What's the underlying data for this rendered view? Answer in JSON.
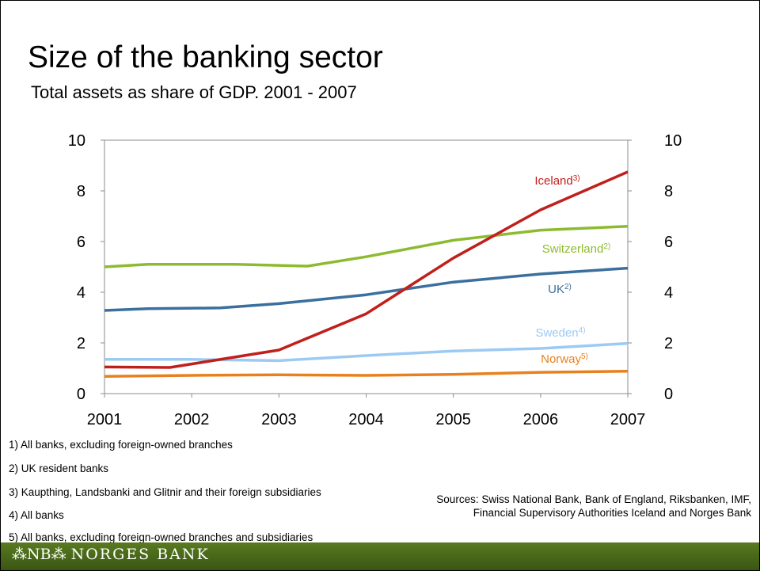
{
  "title": "Size of the banking sector",
  "subtitle": "Total assets as share of GDP. 2001 - 2007",
  "colors": {
    "iceland": "#c0201c",
    "switzerland": "#8dbb30",
    "uk": "#3a6f9e",
    "sweden": "#9ccaf3",
    "norway": "#e8801e",
    "footer": "#4a6a1a"
  },
  "chart_data": {
    "type": "line",
    "x_tick_labels": [
      "2001",
      "2002",
      "2003",
      "2004",
      "2005",
      "2006",
      "2007"
    ],
    "y_ticks": [
      "0",
      "2",
      "4",
      "6",
      "8",
      "10"
    ],
    "y2_ticks": [
      "0",
      "2",
      "4",
      "6",
      "8",
      "10"
    ],
    "ylim": [
      0,
      10
    ],
    "xlim": [
      2001,
      2007
    ],
    "grid": false,
    "series": [
      {
        "key": "iceland",
        "name": "Iceland",
        "sup": "3)",
        "color": "#c0201c",
        "points": [
          [
            2001,
            1.05
          ],
          [
            2001.75,
            1.03
          ],
          [
            2003,
            1.72
          ],
          [
            2004,
            3.15
          ],
          [
            2005,
            5.35
          ],
          [
            2006,
            7.25
          ],
          [
            2007,
            8.75
          ]
        ]
      },
      {
        "key": "switzerland",
        "name": "Switzerland",
        "sup": "2)",
        "color": "#8dbb30",
        "points": [
          [
            2001,
            5.0
          ],
          [
            2001.5,
            5.1
          ],
          [
            2002.5,
            5.1
          ],
          [
            2003.33,
            5.03
          ],
          [
            2004,
            5.4
          ],
          [
            2005,
            6.05
          ],
          [
            2006,
            6.45
          ],
          [
            2007,
            6.6
          ]
        ]
      },
      {
        "key": "uk",
        "name": "UK",
        "sup": "2)",
        "color": "#3a6f9e",
        "points": [
          [
            2001,
            3.28
          ],
          [
            2001.5,
            3.35
          ],
          [
            2002.33,
            3.38
          ],
          [
            2003,
            3.55
          ],
          [
            2004,
            3.9
          ],
          [
            2005,
            4.4
          ],
          [
            2006,
            4.72
          ],
          [
            2007,
            4.95
          ]
        ]
      },
      {
        "key": "sweden",
        "name": "Sweden",
        "sup": "4)",
        "color": "#9ccaf3",
        "points": [
          [
            2001,
            1.35
          ],
          [
            2002,
            1.35
          ],
          [
            2003,
            1.3
          ],
          [
            2004,
            1.5
          ],
          [
            2005,
            1.68
          ],
          [
            2006,
            1.78
          ],
          [
            2007,
            1.98
          ]
        ]
      },
      {
        "key": "norway",
        "name": "Norway",
        "sup": "5)",
        "color": "#e8801e",
        "points": [
          [
            2001,
            0.68
          ],
          [
            2002,
            0.72
          ],
          [
            2003,
            0.74
          ],
          [
            2004,
            0.72
          ],
          [
            2005,
            0.76
          ],
          [
            2006,
            0.84
          ],
          [
            2007,
            0.88
          ]
        ]
      }
    ]
  },
  "footnotes": [
    "1) All banks, excluding foreign-owned branches",
    "2) UK resident banks",
    "3) Kaupthing, Landsbanki and Glitnir and their foreign subsidiaries",
    "4) All banks",
    "5) All banks, excluding foreign-owned branches and subsidiaries"
  ],
  "sources": "Sources: Swiss National Bank, Bank of England, Riksbanken, IMF, Financial Supervisory Authorities Iceland and Norges Bank",
  "footer": {
    "logo_mark": "⁂NB⁂",
    "brand": "NORGES BANK"
  }
}
